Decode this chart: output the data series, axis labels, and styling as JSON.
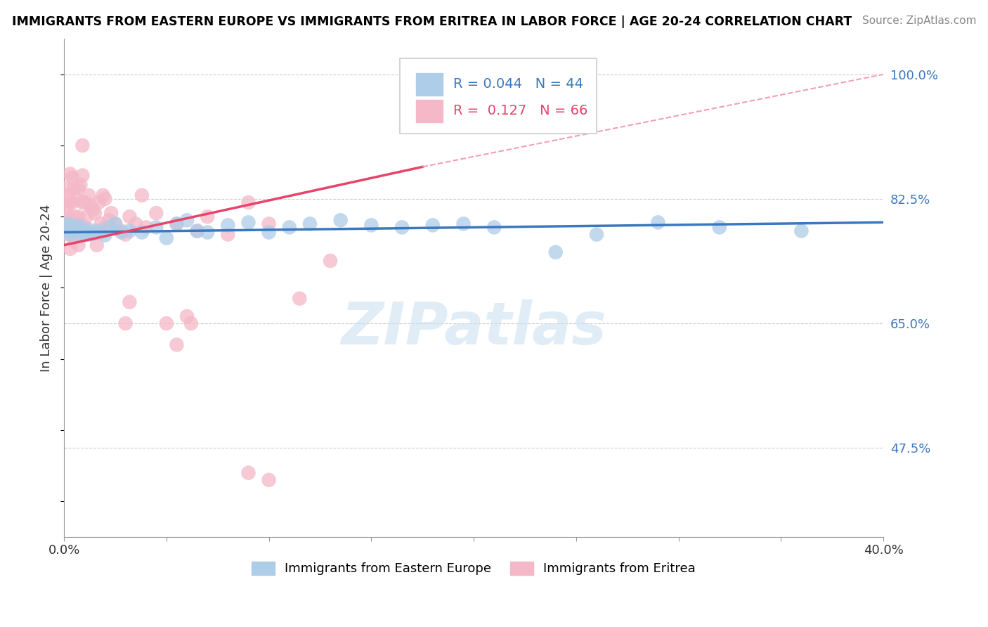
{
  "title": "IMMIGRANTS FROM EASTERN EUROPE VS IMMIGRANTS FROM ERITREA IN LABOR FORCE | AGE 20-24 CORRELATION CHART",
  "source": "Source: ZipAtlas.com",
  "ylabel": "In Labor Force | Age 20-24",
  "xlim": [
    0.0,
    0.4
  ],
  "ylim": [
    0.35,
    1.05
  ],
  "yticks_right": [
    1.0,
    0.825,
    0.65,
    0.475
  ],
  "ytick_labels_right": [
    "100.0%",
    "82.5%",
    "65.0%",
    "47.5%"
  ],
  "blue_color": "#aecde8",
  "pink_color": "#f4b8c8",
  "blue_line_color": "#3a78bf",
  "pink_line_color": "#e8436a",
  "pink_dash_color": "#f0a0b8",
  "r_blue": 0.044,
  "n_blue": 44,
  "r_pink": 0.127,
  "n_pink": 66,
  "watermark": "ZIPatlas",
  "blue_scatter_x": [
    0.001,
    0.002,
    0.003,
    0.003,
    0.004,
    0.005,
    0.006,
    0.007,
    0.008,
    0.009,
    0.01,
    0.011,
    0.012,
    0.014,
    0.016,
    0.018,
    0.02,
    0.022,
    0.025,
    0.028,
    0.032,
    0.038,
    0.045,
    0.05,
    0.055,
    0.06,
    0.065,
    0.07,
    0.08,
    0.09,
    0.1,
    0.11,
    0.12,
    0.135,
    0.15,
    0.165,
    0.18,
    0.195,
    0.21,
    0.24,
    0.26,
    0.29,
    0.32,
    0.36
  ],
  "blue_scatter_y": [
    0.785,
    0.79,
    0.78,
    0.775,
    0.785,
    0.78,
    0.782,
    0.788,
    0.775,
    0.782,
    0.778,
    0.775,
    0.782,
    0.776,
    0.78,
    0.778,
    0.774,
    0.785,
    0.79,
    0.778,
    0.78,
    0.778,
    0.785,
    0.77,
    0.79,
    0.795,
    0.78,
    0.778,
    0.788,
    0.792,
    0.778,
    0.785,
    0.79,
    0.795,
    0.788,
    0.785,
    0.788,
    0.79,
    0.785,
    0.75,
    0.775,
    0.792,
    0.785,
    0.78
  ],
  "pink_scatter_x": [
    0.001,
    0.001,
    0.001,
    0.002,
    0.002,
    0.002,
    0.003,
    0.003,
    0.003,
    0.003,
    0.004,
    0.004,
    0.004,
    0.005,
    0.005,
    0.005,
    0.006,
    0.006,
    0.007,
    0.007,
    0.007,
    0.008,
    0.008,
    0.009,
    0.009,
    0.009,
    0.01,
    0.01,
    0.011,
    0.012,
    0.013,
    0.013,
    0.014,
    0.015,
    0.016,
    0.017,
    0.018,
    0.019,
    0.02,
    0.02,
    0.022,
    0.023,
    0.025,
    0.028,
    0.03,
    0.032,
    0.035,
    0.038,
    0.04,
    0.045,
    0.05,
    0.055,
    0.06,
    0.065,
    0.07,
    0.08,
    0.09,
    0.1,
    0.115,
    0.13,
    0.03,
    0.032,
    0.055,
    0.062,
    0.09,
    0.1
  ],
  "pink_scatter_y": [
    0.79,
    0.81,
    0.84,
    0.775,
    0.8,
    0.83,
    0.755,
    0.79,
    0.82,
    0.86,
    0.78,
    0.82,
    0.855,
    0.77,
    0.8,
    0.84,
    0.79,
    0.825,
    0.76,
    0.8,
    0.84,
    0.79,
    0.845,
    0.82,
    0.858,
    0.9,
    0.785,
    0.82,
    0.8,
    0.83,
    0.775,
    0.815,
    0.81,
    0.805,
    0.76,
    0.82,
    0.79,
    0.83,
    0.785,
    0.825,
    0.795,
    0.805,
    0.79,
    0.78,
    0.775,
    0.8,
    0.79,
    0.83,
    0.785,
    0.805,
    0.65,
    0.79,
    0.66,
    0.78,
    0.8,
    0.775,
    0.82,
    0.79,
    0.685,
    0.738,
    0.65,
    0.68,
    0.62,
    0.65,
    0.44,
    0.43
  ],
  "blue_trend": [
    0.0,
    0.4,
    0.778,
    0.792
  ],
  "pink_solid_trend": [
    0.0,
    0.175,
    0.76,
    0.87
  ],
  "pink_dash_trend": [
    0.175,
    0.4,
    0.87,
    1.0
  ]
}
